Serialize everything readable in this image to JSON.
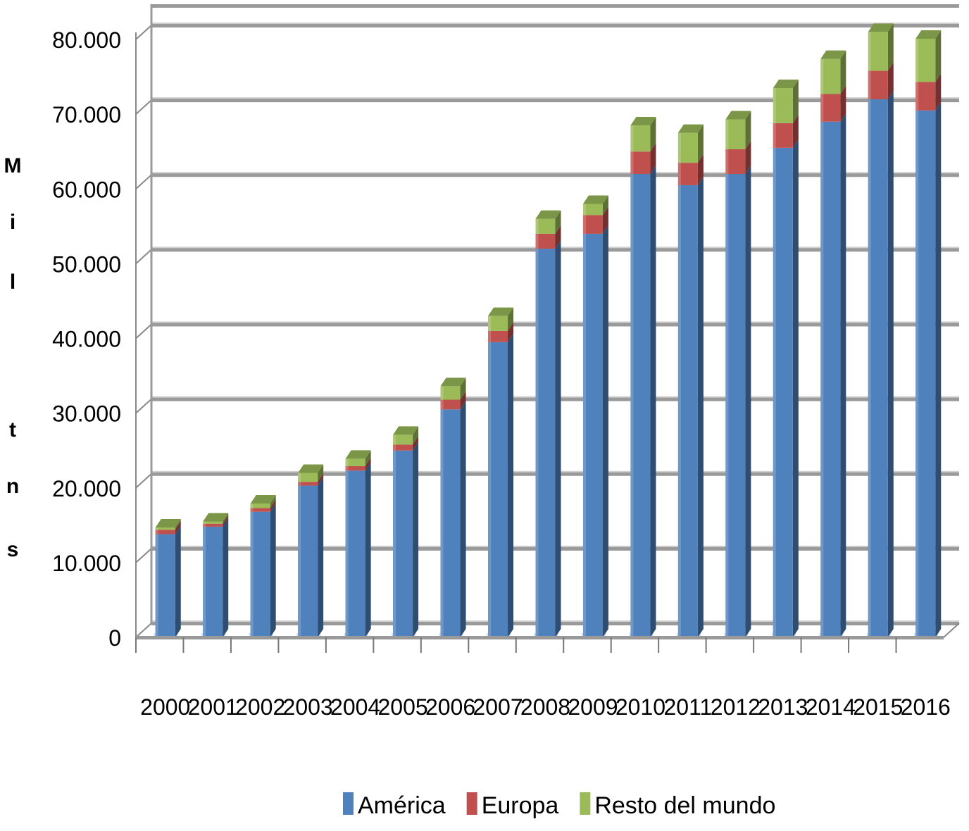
{
  "chart_data": {
    "type": "bar",
    "stacked": true,
    "three_d": true,
    "ylabel": "Mil tns",
    "ylabel_letters": [
      "M",
      "i",
      "l",
      "t",
      "n",
      "s"
    ],
    "ylim": [
      0,
      80000
    ],
    "yticks": [
      0,
      10000,
      20000,
      30000,
      40000,
      50000,
      60000,
      70000,
      80000
    ],
    "ytick_labels": [
      "0",
      "10.000",
      "20.000",
      "30.000",
      "40.000",
      "50.000",
      "60.000",
      "70.000",
      "80.000"
    ],
    "grid": true,
    "legend_position": "bottom",
    "categories": [
      "2000",
      "2001",
      "2002",
      "2003",
      "2004",
      "2005",
      "2006",
      "2007",
      "2008",
      "2009",
      "2010",
      "2011",
      "2012",
      "2013",
      "2014",
      "2015",
      "2016"
    ],
    "series": [
      {
        "name": "América",
        "color": "#4f81bd",
        "values": [
          13800,
          14800,
          16800,
          20300,
          22300,
          25000,
          30500,
          39500,
          52000,
          54000,
          62000,
          60500,
          62000,
          65500,
          69000,
          72000,
          70500
        ]
      },
      {
        "name": "Europa",
        "color": "#c0504d",
        "values": [
          600,
          400,
          500,
          500,
          600,
          800,
          1300,
          1500,
          2000,
          2500,
          3000,
          3000,
          3300,
          3300,
          3700,
          3800,
          3800
        ]
      },
      {
        "name": "Resto del mundo",
        "color": "#9bbb59",
        "values": [
          300,
          300,
          600,
          1200,
          1000,
          1300,
          1800,
          2000,
          2000,
          1500,
          3500,
          4000,
          4000,
          4700,
          4700,
          5200,
          5800
        ]
      }
    ]
  }
}
